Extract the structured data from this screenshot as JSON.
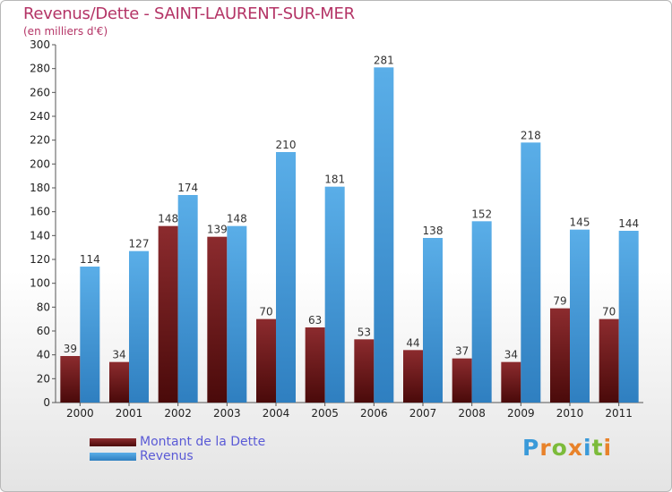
{
  "title": "Revenus/Dette - SAINT-LAURENT-SUR-MER",
  "subtitle": "(en milliers d'€)",
  "colors": {
    "title": "#b43466",
    "dette_top": "#8c2b2e",
    "dette_bottom": "#4a0a0a",
    "revenus_top": "#5aaee8",
    "revenus_bottom": "#2f7fc0",
    "legend_text": "#5a5ad6"
  },
  "legend": {
    "dette": "Montant de la Dette",
    "revenus": "Revenus"
  },
  "logo": {
    "text": "Proxiti",
    "letter_colors": [
      "#3a9ad9",
      "#e8822a",
      "#7cbb3a",
      "#e8822a",
      "#3a9ad9",
      "#7cbb3a",
      "#e8822a"
    ]
  },
  "chart_data": {
    "type": "bar",
    "categories": [
      "2000",
      "2001",
      "2002",
      "2003",
      "2004",
      "2005",
      "2006",
      "2007",
      "2008",
      "2009",
      "2010",
      "2011"
    ],
    "series": [
      {
        "name": "Montant de la Dette",
        "values": [
          39,
          34,
          148,
          139,
          70,
          63,
          53,
          44,
          37,
          34,
          79,
          70
        ]
      },
      {
        "name": "Revenus",
        "values": [
          114,
          127,
          174,
          148,
          210,
          181,
          281,
          138,
          152,
          218,
          145,
          144
        ]
      }
    ],
    "title": "Revenus/Dette - SAINT-LAURENT-SUR-MER",
    "ylabel": "(en milliers d'€)",
    "ylim": [
      0,
      300
    ],
    "yticks": [
      0,
      20,
      40,
      60,
      80,
      100,
      120,
      140,
      160,
      180,
      200,
      220,
      240,
      260,
      280,
      300
    ],
    "grid": false,
    "legend_position": "bottom-left"
  }
}
